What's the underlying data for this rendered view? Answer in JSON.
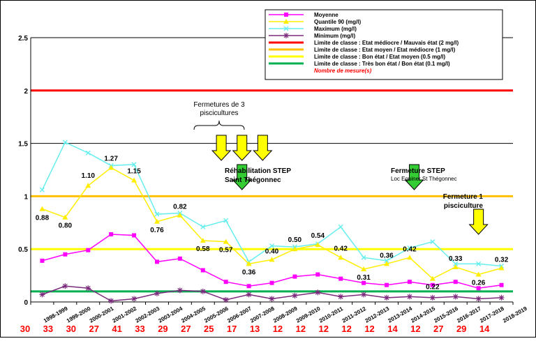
{
  "chart_data": {
    "type": "line",
    "categories": [
      "1998-1999",
      "1999-2000",
      "2000-2001",
      "2001-2002",
      "2002-2003",
      "2003-2004",
      "2004-2005",
      "2005-2006",
      "2006-2007",
      "2007-2008",
      "2008-2009",
      "2009-2010",
      "2010-2011",
      "2011-2012",
      "2012-2013",
      "2013-2014",
      "2014-2015",
      "2015-2016",
      "2016-2017",
      "2017-2018",
      "2018-2019"
    ],
    "ylim": [
      0,
      2.5
    ],
    "yticks": [
      "0",
      "0.5",
      "1",
      "1.5",
      "2",
      "2.5"
    ],
    "grid": true,
    "legend_position": "top-right",
    "series": [
      {
        "name": "Moyenne",
        "color": "#ff00ff",
        "marker": "square",
        "values": [
          0.39,
          0.45,
          0.49,
          0.64,
          0.63,
          0.38,
          0.41,
          0.3,
          0.19,
          0.15,
          0.18,
          0.24,
          0.26,
          0.22,
          0.18,
          0.16,
          0.19,
          0.16,
          0.19,
          0.13,
          0.16
        ]
      },
      {
        "name": "Quantile 90 (mg/l)",
        "color": "#ffee00",
        "marker": "triangle",
        "values": [
          0.88,
          0.8,
          1.1,
          1.27,
          1.15,
          0.76,
          0.82,
          0.58,
          0.57,
          0.36,
          0.4,
          0.5,
          0.54,
          0.42,
          0.31,
          0.36,
          0.42,
          0.22,
          0.33,
          0.26,
          0.32
        ],
        "labels": [
          "0.88",
          "0.80",
          "1.10",
          "1.27",
          "1.15",
          "0.76",
          "0.82",
          "0.58",
          "0.57",
          "0.36",
          "0.40",
          "0.50",
          "0.54",
          "0.42",
          "0.31",
          "0.36",
          "0.42",
          "0.22",
          "0.33",
          "0.26",
          "0.32"
        ]
      },
      {
        "name": "Maximum (mg/l)",
        "color": "#66eeee",
        "marker": "x",
        "values": [
          1.06,
          1.51,
          1.41,
          1.29,
          1.3,
          0.83,
          0.84,
          0.71,
          0.77,
          0.38,
          0.53,
          0.52,
          0.55,
          0.71,
          0.42,
          0.39,
          0.51,
          0.57,
          0.36,
          0.36,
          0.34
        ]
      },
      {
        "name": "Minimum (mg/l)",
        "color": "#7b2a7b",
        "marker": "star",
        "values": [
          0.07,
          0.15,
          0.13,
          0.01,
          0.03,
          0.08,
          0.11,
          0.1,
          0.02,
          0.07,
          0.03,
          0.06,
          0.09,
          0.05,
          0.07,
          0.04,
          0.05,
          0.04,
          0.05,
          0.03,
          0.04
        ]
      }
    ],
    "thresholds": [
      {
        "name": "Limite de classe : Etat médiocre / Mauvais état (2 mg/l)",
        "value": 2,
        "color": "#ff0000"
      },
      {
        "name": "Limite de classe : Etat moyen / Etat médiocre (1 mg/l)",
        "value": 1,
        "color": "#ffc000"
      },
      {
        "name": "Limite de classe : Bon état / Etat moyen (0.5 mg/l)",
        "value": 0.5,
        "color": "#ffff00"
      },
      {
        "name": "Limite de classe : Très bon état / Bon état (0.1 mg/l)",
        "value": 0.1,
        "color": "#00b050"
      }
    ],
    "measure_counts_label": "Nombre de mesure(s)",
    "measure_counts_color": "#ff0000",
    "measure_counts": [
      "30",
      "33",
      "30",
      "27",
      "41",
      "33",
      "29",
      "27",
      "25",
      "17",
      "13",
      "12",
      "12",
      "12",
      "12",
      "12",
      "14",
      "12",
      "27",
      "29",
      "14"
    ],
    "annotations": [
      {
        "title": "Fermetures de 3",
        "line2": "piscicultures",
        "at_categories": [
          7.8,
          8.7,
          9.6
        ]
      },
      {
        "title": "Réhabilitation STEP",
        "line2": "Saint Thégonnec",
        "at_category": 8.7
      },
      {
        "title": "Fermeture STEP",
        "line2": "Loc Eguiner St Thégonnec",
        "at_category": 16.2
      },
      {
        "title": "Fermeture 1",
        "line2": "pisciculture",
        "at_category": 19.0
      }
    ]
  }
}
